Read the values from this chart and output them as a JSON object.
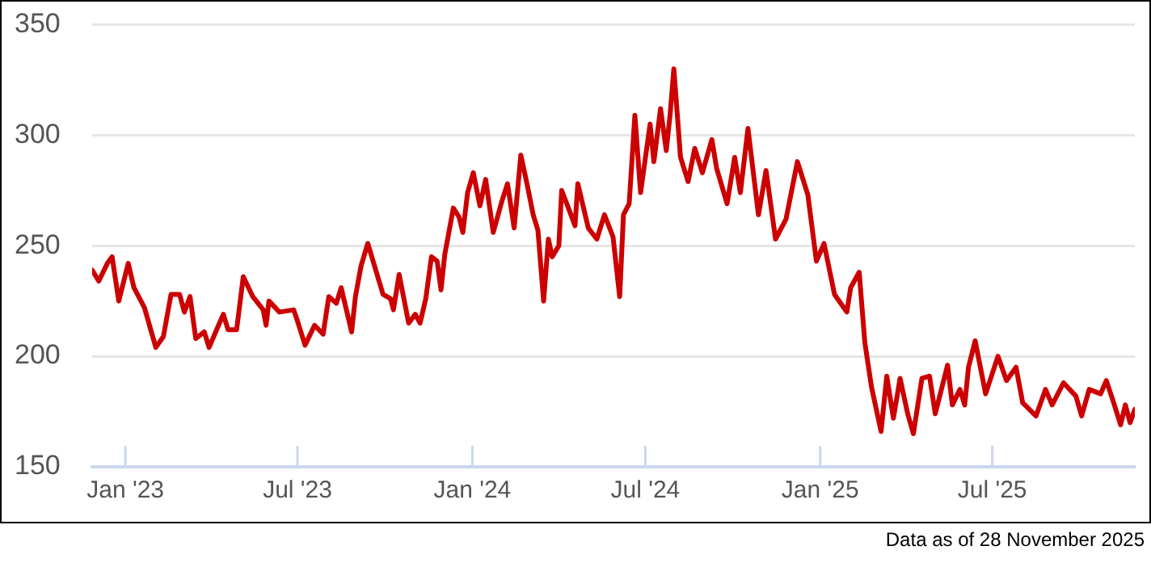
{
  "chart_data": {
    "type": "line",
    "color": "#cc0000",
    "marker": "none",
    "line_style": "solid",
    "grid": "y",
    "legend": false,
    "x": [
      "2022-11-27",
      "2022-12-04",
      "2022-12-13",
      "2022-12-18",
      "2022-12-25",
      "2023-01-04",
      "2023-01-10",
      "2023-01-21",
      "2023-02-02",
      "2023-02-10",
      "2023-02-18",
      "2023-02-27",
      "2023-03-04",
      "2023-03-10",
      "2023-03-16",
      "2023-03-25",
      "2023-03-30",
      "2023-04-11",
      "2023-04-14",
      "2023-04-19",
      "2023-04-28",
      "2023-05-05",
      "2023-05-15",
      "2023-05-26",
      "2023-05-29",
      "2023-06-01",
      "2023-06-12",
      "2023-06-27",
      "2023-07-01",
      "2023-07-09",
      "2023-07-19",
      "2023-07-28",
      "2023-08-03",
      "2023-08-11",
      "2023-08-16",
      "2023-08-27",
      "2023-08-31",
      "2023-09-06",
      "2023-09-13",
      "2023-09-20",
      "2023-09-29",
      "2023-10-07",
      "2023-10-10",
      "2023-10-16",
      "2023-10-26",
      "2023-11-02",
      "2023-11-07",
      "2023-11-13",
      "2023-11-19",
      "2023-11-25",
      "2023-11-29",
      "2023-12-03",
      "2023-12-12",
      "2023-12-18",
      "2023-12-22",
      "2023-12-27",
      "2024-01-02",
      "2024-01-09",
      "2024-01-15",
      "2024-01-23",
      "2024-02-01",
      "2024-02-07",
      "2024-02-14",
      "2024-02-21",
      "2024-02-28",
      "2024-03-05",
      "2024-03-10",
      "2024-03-16",
      "2024-03-21",
      "2024-03-25",
      "2024-04-01",
      "2024-04-04",
      "2024-04-12",
      "2024-04-18",
      "2024-04-21",
      "2024-05-02",
      "2024-05-11",
      "2024-05-19",
      "2024-05-28",
      "2024-06-04",
      "2024-06-08",
      "2024-06-14",
      "2024-06-20",
      "2024-06-26",
      "2024-07-06",
      "2024-07-10",
      "2024-07-17",
      "2024-07-23",
      "2024-07-27",
      "2024-07-31",
      "2024-08-07",
      "2024-08-15",
      "2024-08-22",
      "2024-08-30",
      "2024-09-09",
      "2024-09-14",
      "2024-09-25",
      "2024-10-03",
      "2024-10-09",
      "2024-10-17",
      "2024-10-28",
      "2024-11-05",
      "2024-11-15",
      "2024-11-26",
      "2024-12-08",
      "2024-12-19",
      "2024-12-28",
      "2025-01-05",
      "2025-01-16",
      "2025-01-29",
      "2025-02-02",
      "2025-02-11",
      "2025-02-17",
      "2025-02-24",
      "2025-03-06",
      "2025-03-12",
      "2025-03-19",
      "2025-03-26",
      "2025-04-03",
      "2025-04-09",
      "2025-04-18",
      "2025-04-26",
      "2025-05-02",
      "2025-05-15",
      "2025-05-20",
      "2025-05-28",
      "2025-06-02",
      "2025-06-06",
      "2025-06-13",
      "2025-06-24",
      "2025-07-07",
      "2025-07-16",
      "2025-07-26",
      "2025-08-02",
      "2025-08-16",
      "2025-08-26",
      "2025-09-02",
      "2025-09-14",
      "2025-09-27",
      "2025-10-03",
      "2025-10-11",
      "2025-10-23",
      "2025-10-29",
      "2025-11-05",
      "2025-11-13",
      "2025-11-18",
      "2025-11-23",
      "2025-11-28"
    ],
    "values": [
      239,
      234,
      242,
      245,
      225,
      242,
      231,
      222,
      204,
      209,
      228,
      228,
      220,
      227,
      208,
      211,
      204,
      216,
      219,
      212,
      212,
      236,
      227,
      221,
      214,
      225,
      220,
      221,
      216,
      205,
      214,
      210,
      227,
      224,
      231,
      211,
      227,
      241,
      251,
      241,
      228,
      226,
      221,
      237,
      215,
      219,
      215,
      226,
      245,
      243,
      230,
      246,
      267,
      263,
      256,
      274,
      283,
      268,
      280,
      256,
      270,
      278,
      258,
      291,
      277,
      264,
      257,
      225,
      253,
      245,
      250,
      275,
      266,
      259,
      278,
      258,
      253,
      264,
      254,
      227,
      264,
      269,
      309,
      274,
      305,
      288,
      312,
      293,
      309,
      330,
      290,
      279,
      294,
      283,
      298,
      285,
      269,
      290,
      274,
      303,
      264,
      284,
      253,
      262,
      288,
      273,
      243,
      251,
      228,
      220,
      231,
      238,
      206,
      186,
      166,
      191,
      172,
      190,
      174,
      165,
      190,
      191,
      174,
      196,
      178,
      185,
      178,
      195,
      207,
      183,
      200,
      189,
      195,
      179,
      173,
      185,
      178,
      188,
      182,
      173,
      185,
      183,
      189,
      180,
      169,
      178,
      170,
      176
    ],
    "xlim": [
      "2022-11-27",
      "2025-11-28"
    ],
    "xticks": [
      {
        "value": "2023-01",
        "label": "Jan '23"
      },
      {
        "value": "2023-07",
        "label": "Jul '23"
      },
      {
        "value": "2024-01",
        "label": "Jan '24"
      },
      {
        "value": "2024-07",
        "label": "Jul '24"
      },
      {
        "value": "2025-01",
        "label": "Jan '25"
      },
      {
        "value": "2025-07",
        "label": "Jul '25"
      }
    ],
    "ylim": [
      150,
      350
    ],
    "yticks": [
      150,
      200,
      250,
      300,
      350
    ],
    "annotations": [
      "Data as of 28 November 2025"
    ]
  }
}
